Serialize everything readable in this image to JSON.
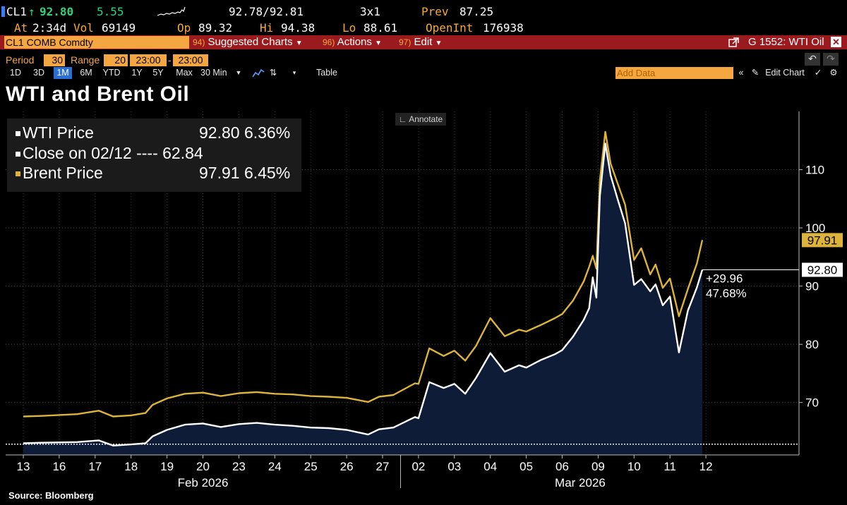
{
  "quote": {
    "ticker": "CL1",
    "arrow": "↑",
    "last": "92.80",
    "change": "5.55",
    "bid_ask": "92.78/92.81",
    "size": "3x1",
    "prev_label": "Prev",
    "prev": "87.25",
    "at_label": "At",
    "at": "2:34d",
    "vol_label": "Vol",
    "vol": "69149",
    "op_label": "Op",
    "op": "89.32",
    "hi_label": "Hi",
    "hi": "94.38",
    "lo_label": "Lo",
    "lo": "88.61",
    "openint_label": "OpenInt",
    "openint": "176938"
  },
  "command_bar": {
    "security": "CL1 COMB Comdty",
    "suggested_num": "94)",
    "suggested": "Suggested Charts",
    "actions_num": "96)",
    "actions": "Actions",
    "edit_num": "97)",
    "edit": "Edit",
    "chart_name": "G 1552: WTI Oil"
  },
  "settings": {
    "period_label": "Period",
    "period": "30",
    "range_label": "Range",
    "range": "20",
    "from": "23:00",
    "to": "23:00"
  },
  "period_buttons": [
    "1D",
    "3D",
    "1M",
    "6M",
    "YTD",
    "1Y",
    "5Y",
    "Max",
    "30 Min"
  ],
  "selected_period": "1M",
  "toolbar": {
    "table": "Table",
    "add_data_placeholder": "Add Data",
    "edit_chart": "Edit Chart",
    "annotate": "Annotate"
  },
  "title": "WTI and Brent Oil",
  "legend": [
    {
      "label": "WTI Price",
      "value": "92.80 6.36%"
    },
    {
      "label": "Close on 02/12 ---- 62.84",
      "value": ""
    },
    {
      "label": "Brent Price",
      "value": "97.91 6.45%"
    }
  ],
  "colors": {
    "wti": "#ffffff",
    "brent": "#dcb43c",
    "area": "#0e1c38",
    "amber": "#f4a640",
    "command_red": "#9b1a1d",
    "green": "#31d37a"
  },
  "source": "Source: Bloomberg",
  "chart_data": {
    "type": "line",
    "title": "WTI and Brent Oil",
    "x_ticks": [
      "13",
      "16",
      "17",
      "18",
      "19",
      "20",
      "23",
      "24",
      "25",
      "26",
      "27",
      "02",
      "03",
      "04",
      "05",
      "06",
      "09",
      "10",
      "11",
      "12"
    ],
    "x_months": [
      "Feb 2026",
      "Mar 2026"
    ],
    "ylim": [
      61,
      120
    ],
    "y_ticks": [
      70,
      80,
      90,
      100,
      110
    ],
    "reference_line": {
      "label": "Close on 02/12",
      "value": 62.84
    },
    "last_labels": {
      "brent": "97.91",
      "wti": "92.80",
      "change": "+29.96",
      "change_pct": "47.68%"
    },
    "series": [
      {
        "name": "WTI Price",
        "x": [
          0,
          0.5,
          1.5,
          2.1,
          2.5,
          3,
          3.4,
          3.6,
          4,
          4.5,
          5,
          5.5,
          6,
          6.5,
          7,
          7.5,
          8,
          8.5,
          9,
          9.6,
          9.9,
          10.3,
          10.9,
          11,
          11.3,
          11.7,
          12,
          12.3,
          12.6,
          13,
          13.4,
          13.8,
          14,
          14.4,
          14.8,
          15,
          15.3,
          15.6,
          15.75,
          15.85,
          15.95,
          16.05,
          16.2,
          16.35,
          16.55,
          16.75,
          17,
          17.2,
          17.45,
          17.6,
          17.8,
          18,
          18.25,
          18.5,
          18.75,
          18.9
        ],
        "values": [
          63.0,
          63.1,
          63.2,
          63.5,
          62.6,
          62.8,
          63.0,
          64.2,
          65.3,
          66.2,
          66.4,
          65.8,
          66.3,
          66.5,
          66.2,
          66.0,
          65.7,
          65.6,
          65.3,
          64.5,
          65.4,
          65.7,
          67.5,
          67.3,
          73.5,
          72.5,
          73.2,
          71.5,
          74.2,
          78.5,
          75.3,
          76.4,
          76.0,
          77.3,
          78.3,
          79.0,
          81.3,
          84.2,
          86.2,
          91.5,
          88.0,
          105.5,
          114.5,
          109.0,
          104.8,
          100.8,
          90.2,
          91.2,
          89.1,
          90.3,
          86.7,
          88.2,
          78.6,
          85.8,
          89.8,
          92.8
        ]
      },
      {
        "name": "Brent Price",
        "x": [
          0,
          0.5,
          1.5,
          2.1,
          2.5,
          3,
          3.4,
          3.6,
          4,
          4.5,
          5,
          5.5,
          6,
          6.5,
          7,
          7.5,
          8,
          8.5,
          9,
          9.6,
          9.9,
          10.3,
          10.9,
          11,
          11.3,
          11.7,
          12,
          12.3,
          12.6,
          13,
          13.4,
          13.8,
          14,
          14.4,
          14.8,
          15,
          15.3,
          15.6,
          15.75,
          15.85,
          15.95,
          16.05,
          16.2,
          16.35,
          16.55,
          16.75,
          17,
          17.2,
          17.45,
          17.6,
          17.8,
          18,
          18.25,
          18.5,
          18.75,
          18.9
        ],
        "values": [
          67.6,
          67.7,
          68.0,
          68.6,
          67.6,
          67.8,
          68.2,
          69.6,
          70.7,
          71.5,
          71.7,
          71.1,
          71.6,
          71.8,
          71.5,
          71.4,
          71.1,
          71.0,
          70.8,
          70.1,
          71.0,
          71.3,
          73.3,
          73.2,
          79.3,
          78.0,
          78.9,
          77.2,
          79.7,
          84.5,
          81.4,
          82.5,
          82.2,
          83.3,
          84.5,
          85.2,
          87.5,
          90.8,
          93.3,
          95.2,
          93.0,
          108.2,
          116.5,
          111.0,
          107.5,
          104.0,
          94.5,
          96.5,
          92.0,
          93.7,
          89.7,
          91.3,
          84.8,
          89.5,
          93.9,
          97.9
        ]
      }
    ]
  }
}
